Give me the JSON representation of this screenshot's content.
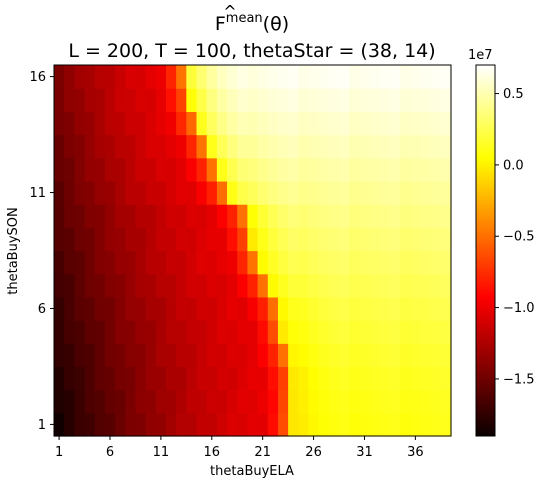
{
  "chart_data": {
    "type": "heatmap",
    "title_line1_base": "F",
    "title_line1_superscript": "mean",
    "title_line1_argument": "(θ)",
    "title_line2": "L = 200, T = 100, thetaStar = (38, 14)",
    "xlabel": "thetaBuyELA",
    "ylabel": "thetaBuySON",
    "x_range": [
      1,
      39
    ],
    "y_range": [
      1,
      16
    ],
    "xticks": [
      1,
      6,
      11,
      16,
      21,
      26,
      31,
      36
    ],
    "yticks": [
      1,
      6,
      11,
      16
    ],
    "colormap": "hot",
    "vmin": -19000000,
    "vmax": 7000000,
    "colorbar_scale_label": "1e7",
    "colorbar_ticks": [
      {
        "value": 5000000,
        "label": "0.5"
      },
      {
        "value": 0,
        "label": "0.0"
      },
      {
        "value": -5000000,
        "label": "−0.5"
      },
      {
        "value": -10000000,
        "label": "−1.0"
      },
      {
        "value": -15000000,
        "label": "−1.5"
      }
    ],
    "boundary_x_by_y": {
      "y": [
        1,
        2,
        3,
        4,
        5,
        6,
        7,
        8,
        9,
        10,
        11,
        12,
        13,
        14,
        15,
        16
      ],
      "x": [
        23.5,
        23.5,
        23.5,
        23,
        22.5,
        22,
        21,
        20,
        19.5,
        19,
        17,
        16,
        15,
        14,
        13.5,
        13
      ]
    },
    "level_red_zone": -10000000,
    "level_dark_corner": -18500000,
    "level_near_boundary": -1000000,
    "level_right_bottom": 1000000,
    "level_right_top": 6600000
  }
}
